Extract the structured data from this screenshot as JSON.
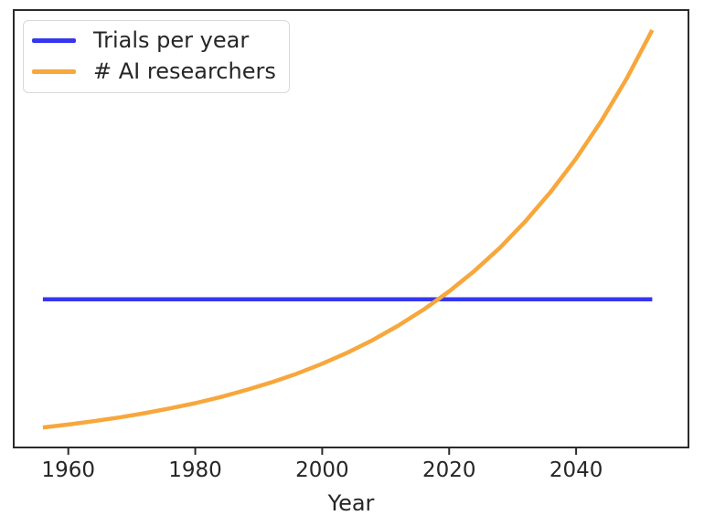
{
  "chart_data": {
    "type": "line",
    "title": "",
    "xlabel": "Year",
    "ylabel": "",
    "grid": false,
    "legend_position": "upper left",
    "xlim": [
      1951.4,
      2057.7
    ],
    "ylim": [
      0.12,
      19.39
    ],
    "x_ticks": [
      1960,
      1980,
      2000,
      2020,
      2040
    ],
    "y_ticks": [],
    "x": [
      1956,
      1960,
      1964,
      1968,
      1972,
      1976,
      1980,
      1984,
      1988,
      1992,
      1996,
      2000,
      2004,
      2008,
      2012,
      2016,
      2020,
      2024,
      2028,
      2032,
      2036,
      2040,
      2044,
      2048,
      2052
    ],
    "series": [
      {
        "name": "Trials per year",
        "color": "#3636f1",
        "line_width": 4.5,
        "values": [
          6.65,
          6.65,
          6.65,
          6.65,
          6.65,
          6.65,
          6.65,
          6.65,
          6.65,
          6.65,
          6.65,
          6.65,
          6.65,
          6.65,
          6.65,
          6.65,
          6.65,
          6.65,
          6.65,
          6.65,
          6.65,
          6.65,
          6.65,
          6.65,
          6.65
        ]
      },
      {
        "name": "# AI researchers",
        "color": "#f7a73c",
        "line_width": 4.5,
        "values": [
          1.0,
          1.13,
          1.28,
          1.44,
          1.63,
          1.84,
          2.07,
          2.34,
          2.65,
          2.99,
          3.37,
          3.81,
          4.3,
          4.86,
          5.49,
          6.2,
          7.0,
          7.9,
          8.92,
          10.08,
          11.38,
          12.85,
          14.52,
          16.39,
          18.51
        ]
      }
    ],
    "annotations": [],
    "crossover_year_approx": 2019
  },
  "axes_style": {
    "spine_color": "#2b2b2b",
    "tick_color": "#2b2b2b",
    "text_color": "#262626"
  }
}
